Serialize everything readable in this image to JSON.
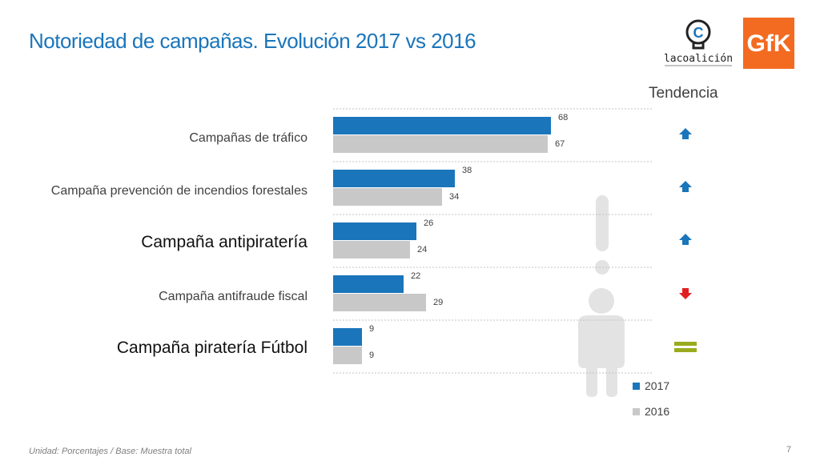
{
  "page": {
    "title": "Notoriedad de campañas. Evolución 2017 vs 2016",
    "tendencia_label": "Tendencia",
    "footer_note": "Unidad: Porcentajes / Base: Muestra total",
    "page_number": "7",
    "logo_coalicion_text": "lacoalición"
  },
  "colors": {
    "series_2017": "#1a75bb",
    "series_2016": "#c8c8c8",
    "title": "#1a75bb",
    "trend_up": "#1a75bb",
    "trend_down": "#e02020",
    "trend_equal": "#9aab1e",
    "gfk_orange": "#f26b21",
    "person_silhouette": "#e3e3e3"
  },
  "chart_data": {
    "type": "bar",
    "orientation": "horizontal",
    "categories": [
      "Campañas de tráfico",
      "Campaña prevención de incendios forestales",
      "Campaña antipiratería",
      "Campaña antifraude fiscal",
      "Campaña piratería Fútbol"
    ],
    "emphasized_categories": [
      "Campaña antipiratería",
      "Campaña piratería Fútbol"
    ],
    "series": [
      {
        "name": "2017",
        "values": [
          68,
          38,
          26,
          22,
          9
        ]
      },
      {
        "name": "2016",
        "values": [
          67,
          34,
          24,
          29,
          9
        ]
      }
    ],
    "trend": [
      "up",
      "up",
      "up",
      "down",
      "equal"
    ],
    "xlim": [
      0,
      100
    ],
    "grid": true,
    "legend_position": "bottom-right"
  }
}
